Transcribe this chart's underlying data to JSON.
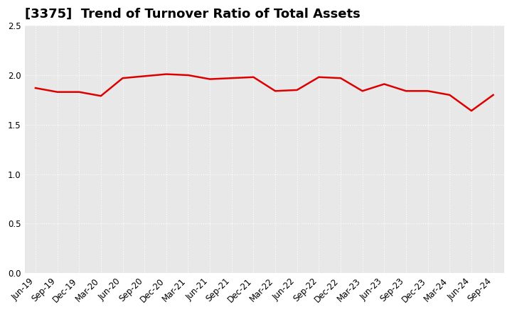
{
  "title": "[3375]  Trend of Turnover Ratio of Total Assets",
  "x_labels": [
    "Jun-19",
    "Sep-19",
    "Dec-19",
    "Mar-20",
    "Jun-20",
    "Sep-20",
    "Dec-20",
    "Mar-21",
    "Jun-21",
    "Sep-21",
    "Dec-21",
    "Mar-22",
    "Jun-22",
    "Sep-22",
    "Dec-22",
    "Mar-23",
    "Jun-23",
    "Sep-23",
    "Dec-23",
    "Mar-24",
    "Jun-24",
    "Sep-24"
  ],
  "y_values": [
    1.87,
    1.83,
    1.83,
    1.79,
    1.97,
    1.99,
    2.01,
    2.0,
    1.96,
    1.97,
    1.98,
    1.84,
    1.85,
    1.98,
    1.97,
    1.84,
    1.91,
    1.84,
    1.84,
    1.8,
    1.64,
    1.8
  ],
  "line_color": "#dd0000",
  "ylim": [
    0.0,
    2.5
  ],
  "yticks": [
    0.0,
    0.5,
    1.0,
    1.5,
    2.0,
    2.5
  ],
  "plot_bg_color": "#e8e8e8",
  "fig_bg_color": "#ffffff",
  "grid_color": "#ffffff",
  "title_fontsize": 13,
  "tick_fontsize": 8.5
}
